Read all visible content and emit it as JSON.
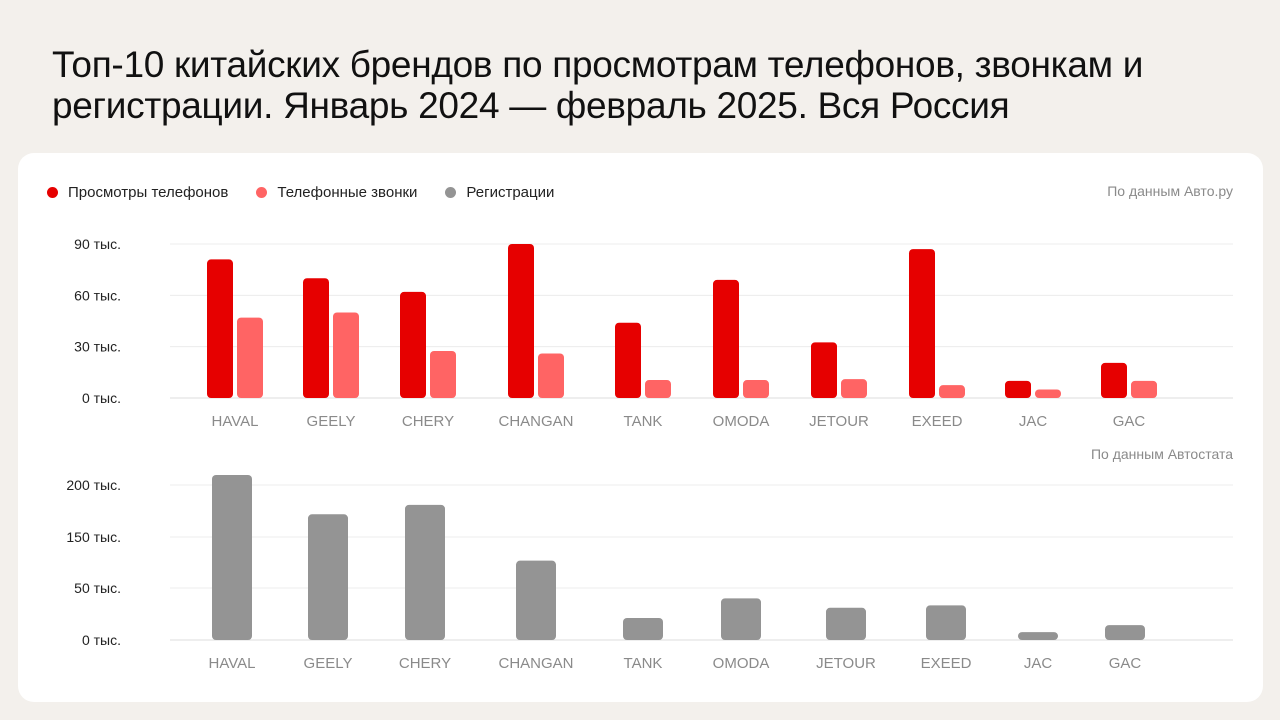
{
  "title": "Топ-10 китайских брендов по просмотрам телефонов, звонкам и регистрации. Январь 2024 — февраль 2025. Вся Россия",
  "legend": [
    {
      "label": "Просмотры телефонов",
      "color": "#e60000"
    },
    {
      "label": "Телефонные звонки",
      "color": "#ff6464"
    },
    {
      "label": "Регистрации",
      "color": "#949494"
    }
  ],
  "sources": {
    "top": "По данным Авто.ру",
    "bottom": "По данным Автостата"
  },
  "chart_data": [
    {
      "type": "bar",
      "categories": [
        "HAVAL",
        "GEELY",
        "CHERY",
        "CHANGAN",
        "TANK",
        "OMODA",
        "JETOUR",
        "EXEED",
        "JAC",
        "GAC"
      ],
      "series": [
        {
          "name": "Просмотры телефонов",
          "color": "#e60000",
          "values": [
            81000,
            70000,
            62000,
            90000,
            44000,
            69000,
            32500,
            87000,
            10000,
            20500
          ]
        },
        {
          "name": "Телефонные звонки",
          "color": "#ff6464",
          "values": [
            47000,
            50000,
            27500,
            26000,
            10500,
            10500,
            11000,
            7500,
            5000,
            10000
          ]
        }
      ],
      "yticks": [
        0,
        30000,
        60000,
        90000
      ],
      "ytick_labels": [
        "0 тыс.",
        "30 тыс.",
        "60 тыс.",
        "90 тыс."
      ],
      "ylim": [
        0,
        90000
      ],
      "grid": true
    },
    {
      "type": "bar",
      "categories": [
        "HAVAL",
        "GEELY",
        "CHERY",
        "CHANGAN",
        "TANK",
        "OMODA",
        "JETOUR",
        "EXEED",
        "JAC",
        "GAC"
      ],
      "series": [
        {
          "name": "Регистрации",
          "color": "#949494",
          "values": [
            210000,
            160000,
            172000,
            101000,
            28000,
            53000,
            41000,
            44000,
            10000,
            19000
          ]
        }
      ],
      "yticks": [
        0,
        50000,
        150000,
        200000
      ],
      "ytick_labels": [
        "0 тыс.",
        "50 тыс.",
        "150 тыс.",
        "200 тыс."
      ],
      "grid": true
    }
  ]
}
